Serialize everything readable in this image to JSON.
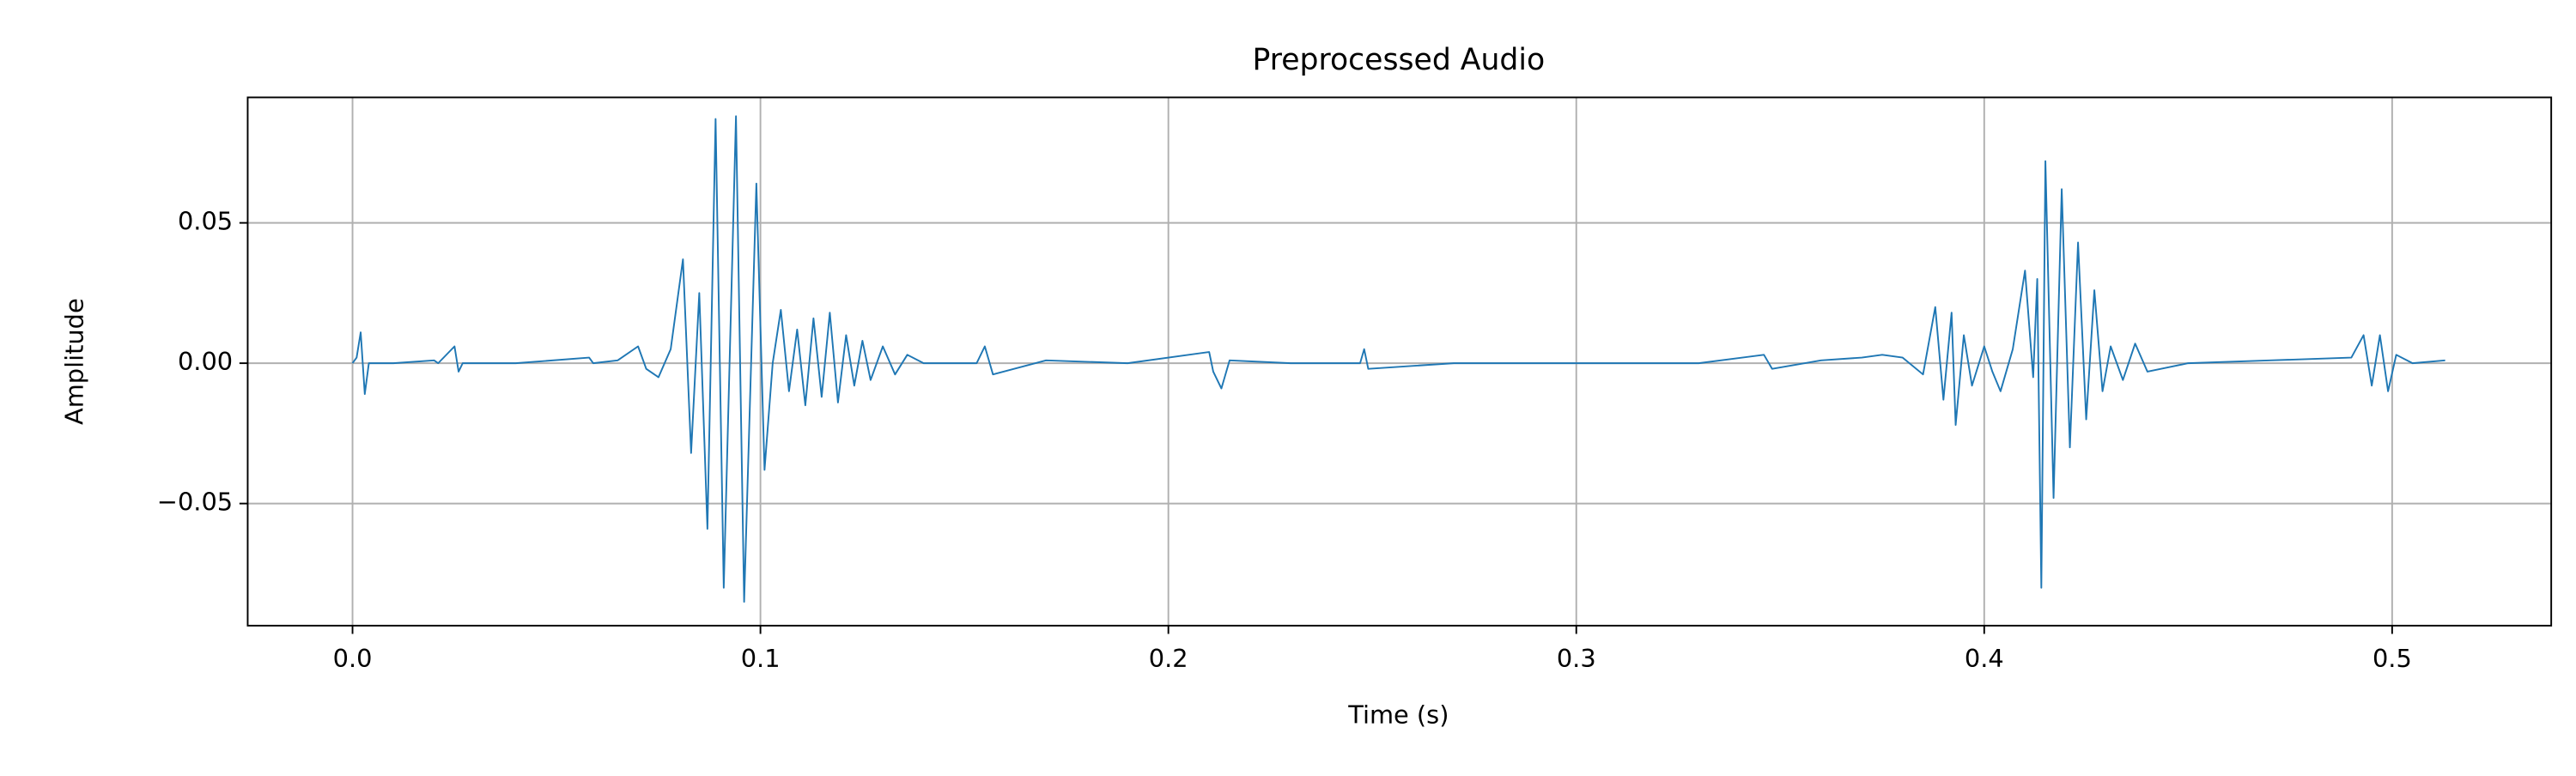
{
  "chart_data": {
    "type": "line",
    "title": "Preprocessed Audio",
    "x_label": "Time (s)",
    "y_label": "Amplitude",
    "x": [
      0,
      0.001,
      0.002,
      0.003,
      0.004,
      0.01,
      0.02,
      0.021,
      0.025,
      0.026,
      0.027,
      0.04,
      0.058,
      0.059,
      0.065,
      0.07,
      0.072,
      0.075,
      0.078,
      0.081,
      0.083,
      0.085,
      0.087,
      0.089,
      0.091,
      0.094,
      0.096,
      0.099,
      0.101,
      0.103,
      0.105,
      0.107,
      0.109,
      0.111,
      0.113,
      0.115,
      0.117,
      0.119,
      0.121,
      0.123,
      0.125,
      0.127,
      0.13,
      0.133,
      0.136,
      0.14,
      0.153,
      0.155,
      0.157,
      0.17,
      0.19,
      0.21,
      0.211,
      0.213,
      0.215,
      0.23,
      0.247,
      0.248,
      0.249,
      0.27,
      0.3,
      0.33,
      0.346,
      0.348,
      0.36,
      0.37,
      0.375,
      0.38,
      0.385,
      0.388,
      0.39,
      0.392,
      0.393,
      0.395,
      0.397,
      0.4,
      0.402,
      0.404,
      0.407,
      0.41,
      0.412,
      0.413,
      0.414,
      0.415,
      0.417,
      0.419,
      0.421,
      0.423,
      0.425,
      0.427,
      0.429,
      0.431,
      0.434,
      0.437,
      0.44,
      0.45,
      0.47,
      0.49,
      0.493,
      0.495,
      0.497,
      0.499,
      0.501,
      0.505,
      0.513
    ],
    "series": [
      {
        "color": "#1f77b4",
        "values": [
          0,
          0.002,
          0.011,
          -0.011,
          0,
          0,
          0.001,
          0,
          0.006,
          -0.003,
          0,
          0,
          0.002,
          0,
          0.001,
          0.006,
          -0.002,
          -0.005,
          0.005,
          0.037,
          -0.032,
          0.025,
          -0.059,
          0.087,
          -0.08,
          0.088,
          -0.085,
          0.064,
          -0.038,
          0,
          0.019,
          -0.01,
          0.012,
          -0.015,
          0.016,
          -0.012,
          0.018,
          -0.014,
          0.01,
          -0.008,
          0.008,
          -0.006,
          0.006,
          -0.004,
          0.003,
          0,
          0,
          0.006,
          -0.004,
          0.001,
          0,
          0.004,
          -0.003,
          -0.009,
          0.001,
          0,
          0,
          0.005,
          -0.002,
          0,
          0,
          0,
          0.003,
          -0.002,
          0.001,
          0.002,
          0.003,
          0.002,
          -0.004,
          0.02,
          -0.013,
          0.018,
          -0.022,
          0.01,
          -0.008,
          0.006,
          -0.003,
          -0.01,
          0.005,
          0.033,
          -0.005,
          0.03,
          -0.08,
          0.072,
          -0.048,
          0.062,
          -0.03,
          0.043,
          -0.02,
          0.026,
          -0.01,
          0.006,
          -0.006,
          0.007,
          -0.003,
          0,
          0.001,
          0.002,
          0.01,
          -0.008,
          0.01,
          -0.01,
          0.003,
          0,
          0.001
        ]
      }
    ],
    "xlim": [
      -0.0257,
      0.539
    ],
    "ylim": [
      -0.0935,
      0.0947
    ],
    "xticks": [
      {
        "value": 0,
        "label": "0.0"
      },
      0.1,
      0.2,
      0.3,
      0.4,
      0.5
    ],
    "yticks": [
      {
        "value": -0.05,
        "label": "−0.05"
      },
      {
        "value": 0,
        "label": "0.00"
      },
      0.05
    ],
    "grid": true
  }
}
